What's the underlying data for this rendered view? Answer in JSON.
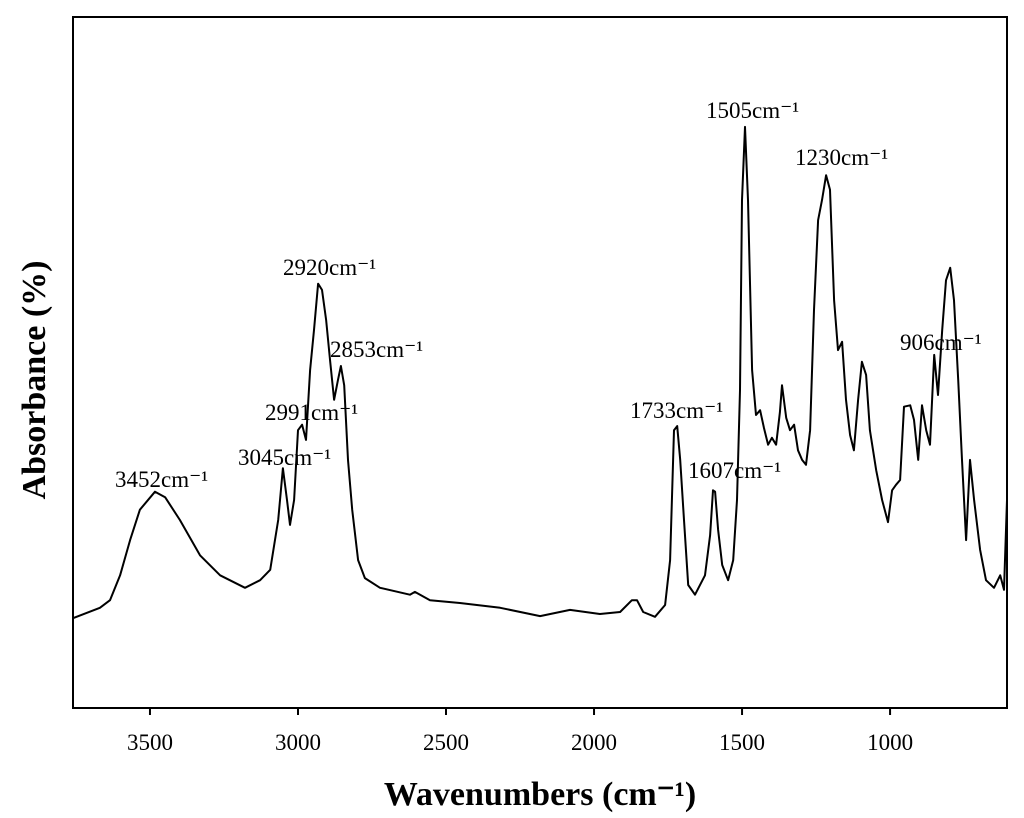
{
  "chart_data": {
    "type": "line",
    "x_label": "Wavenumbers (cm⁻¹)",
    "y_label": "Absorbance (%)",
    "xlim": [
      3760,
      605
    ],
    "ylim": [
      0,
      100
    ],
    "xticks": [
      3500,
      3000,
      2500,
      2000,
      1500,
      1000
    ],
    "annotations": [
      "3452cm⁻¹",
      "3045cm⁻¹",
      "2991cm⁻¹",
      "2920cm⁻¹",
      "2853cm⁻¹",
      "1733cm⁻¹",
      "1607cm⁻¹",
      "1505cm⁻¹",
      "1230cm⁻¹",
      "906cm⁻¹"
    ],
    "series": [
      {
        "color": "#000000",
        "x": [
          3760,
          3669,
          3635,
          3601,
          3567,
          3534,
          3483,
          3449,
          3399,
          3331,
          3263,
          3179,
          3128,
          3094,
          3067,
          3051,
          3037,
          3027,
          3013,
          3000,
          2986,
          2973,
          2959,
          2946,
          2932,
          2919,
          2905,
          2892,
          2878,
          2865,
          2855,
          2844,
          2831,
          2817,
          2797,
          2774,
          2723,
          2622,
          2605,
          2554,
          2453,
          2317,
          2182,
          2081,
          1980,
          1912,
          1872,
          1855,
          1834,
          1794,
          1760,
          1743,
          1730,
          1719,
          1709,
          1696,
          1682,
          1659,
          1625,
          1608,
          1598,
          1591,
          1581,
          1567,
          1547,
          1530,
          1517,
          1507,
          1500,
          1490,
          1480,
          1466,
          1453,
          1439,
          1426,
          1412,
          1399,
          1385,
          1372,
          1365,
          1351,
          1338,
          1324,
          1311,
          1297,
          1284,
          1270,
          1257,
          1243,
          1230,
          1216,
          1203,
          1189,
          1176,
          1162,
          1149,
          1135,
          1122,
          1108,
          1095,
          1081,
          1068,
          1047,
          1027,
          1007,
          993,
          980,
          966,
          953,
          932,
          919,
          905,
          892,
          878,
          865,
          851,
          838,
          824,
          811,
          797,
          784,
          770,
          757,
          743,
          730,
          716,
          696,
          676,
          649,
          628,
          615,
          605
        ],
        "values": [
          13.0,
          14.5,
          15.6,
          19.2,
          24.3,
          28.7,
          31.3,
          30.5,
          27.2,
          22.1,
          19.2,
          17.4,
          18.5,
          20.0,
          27.2,
          34.7,
          30.1,
          26.5,
          30.1,
          40.2,
          41.0,
          38.8,
          48.9,
          54.7,
          61.4,
          60.5,
          56.2,
          50.4,
          44.6,
          47.5,
          49.5,
          46.7,
          35.9,
          28.7,
          21.4,
          18.8,
          17.4,
          16.4,
          16.8,
          15.6,
          15.2,
          14.5,
          13.3,
          14.2,
          13.6,
          13.9,
          15.6,
          15.6,
          13.9,
          13.2,
          14.9,
          21.4,
          40.2,
          40.8,
          35.9,
          27.2,
          17.8,
          16.4,
          19.2,
          25.0,
          31.5,
          31.3,
          25.8,
          20.7,
          18.5,
          21.4,
          30.1,
          46.0,
          73.5,
          84.1,
          73.5,
          48.9,
          42.4,
          43.1,
          40.5,
          38.1,
          39.1,
          38.1,
          42.8,
          46.7,
          42.0,
          40.2,
          41.0,
          37.3,
          35.9,
          35.2,
          40.2,
          57.6,
          70.6,
          73.5,
          77.1,
          75.0,
          59.0,
          51.8,
          53.0,
          44.6,
          39.5,
          37.3,
          44.6,
          50.1,
          48.2,
          40.2,
          34.4,
          30.1,
          26.9,
          31.5,
          32.3,
          33.0,
          43.6,
          43.8,
          41.7,
          35.9,
          43.8,
          40.2,
          38.1,
          51.1,
          45.3,
          54.7,
          61.9,
          63.7,
          59.0,
          47.5,
          35.9,
          24.3,
          35.9,
          30.1,
          22.9,
          18.5,
          17.4,
          19.2,
          17.1,
          30.1
        ]
      }
    ]
  }
}
